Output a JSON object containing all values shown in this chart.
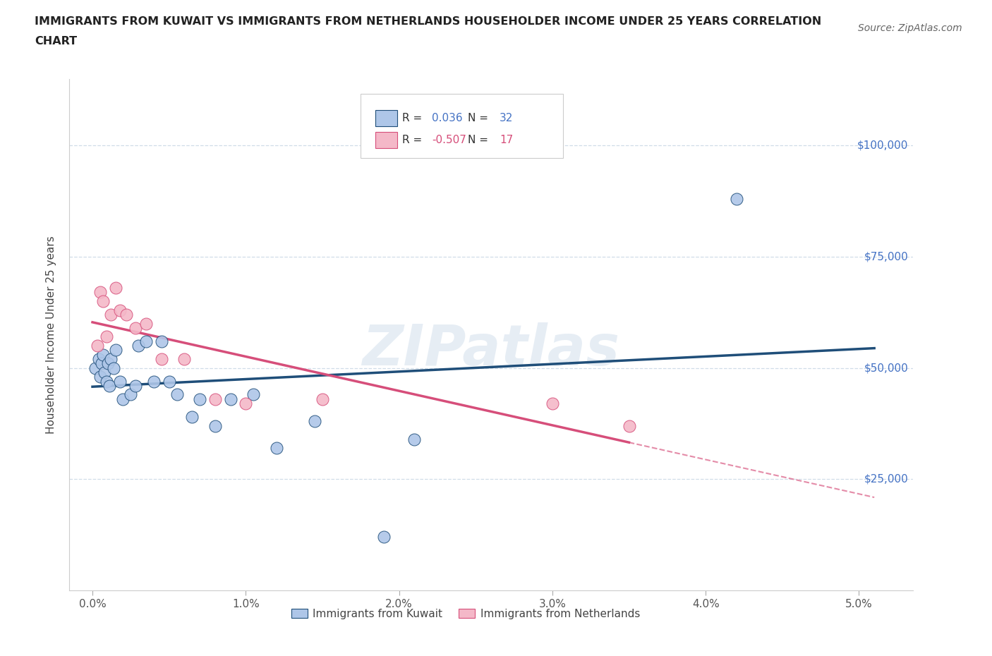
{
  "title": "IMMIGRANTS FROM KUWAIT VS IMMIGRANTS FROM NETHERLANDS HOUSEHOLDER INCOME UNDER 25 YEARS CORRELATION\nCHART",
  "source": "Source: ZipAtlas.com",
  "ylabel": "Householder Income Under 25 years",
  "xlabel_ticks": [
    "0.0%",
    "1.0%",
    "2.0%",
    "3.0%",
    "4.0%",
    "5.0%"
  ],
  "xlabel_vals": [
    0.0,
    1.0,
    2.0,
    3.0,
    4.0,
    5.0
  ],
  "ylabel_ticks": [
    "$25,000",
    "$50,000",
    "$75,000",
    "$100,000"
  ],
  "ylabel_vals": [
    25000,
    50000,
    75000,
    100000
  ],
  "xlim": [
    -0.15,
    5.35
  ],
  "ylim": [
    0,
    115000
  ],
  "kuwait_R": 0.036,
  "kuwait_N": 32,
  "netherlands_R": -0.507,
  "netherlands_N": 17,
  "kuwait_color": "#aec6e8",
  "kuwait_line_color": "#1f4e79",
  "netherlands_color": "#f4b8c8",
  "netherlands_line_color": "#d64e7a",
  "kuwait_x": [
    0.02,
    0.04,
    0.05,
    0.06,
    0.07,
    0.08,
    0.09,
    0.1,
    0.11,
    0.12,
    0.14,
    0.15,
    0.18,
    0.2,
    0.25,
    0.28,
    0.3,
    0.35,
    0.4,
    0.45,
    0.5,
    0.55,
    0.65,
    0.7,
    0.8,
    0.9,
    1.05,
    1.2,
    1.45,
    1.9,
    2.1,
    4.2
  ],
  "kuwait_y": [
    50000,
    52000,
    48000,
    51000,
    53000,
    49000,
    47000,
    51000,
    46000,
    52000,
    50000,
    54000,
    47000,
    43000,
    44000,
    46000,
    55000,
    56000,
    47000,
    56000,
    47000,
    44000,
    39000,
    43000,
    37000,
    43000,
    44000,
    32000,
    38000,
    12000,
    34000,
    88000
  ],
  "netherlands_x": [
    0.03,
    0.05,
    0.07,
    0.09,
    0.12,
    0.15,
    0.18,
    0.22,
    0.28,
    0.35,
    0.45,
    0.6,
    0.8,
    1.0,
    1.5,
    3.0,
    3.5
  ],
  "netherlands_y": [
    55000,
    67000,
    65000,
    57000,
    62000,
    68000,
    63000,
    62000,
    59000,
    60000,
    52000,
    52000,
    43000,
    42000,
    43000,
    42000,
    37000
  ],
  "watermark_text": "ZIPatlas",
  "background_color": "#ffffff",
  "grid_color": "#d0dde8",
  "ytick_color": "#4472c4",
  "netherlands_dashed_end": 5.1
}
